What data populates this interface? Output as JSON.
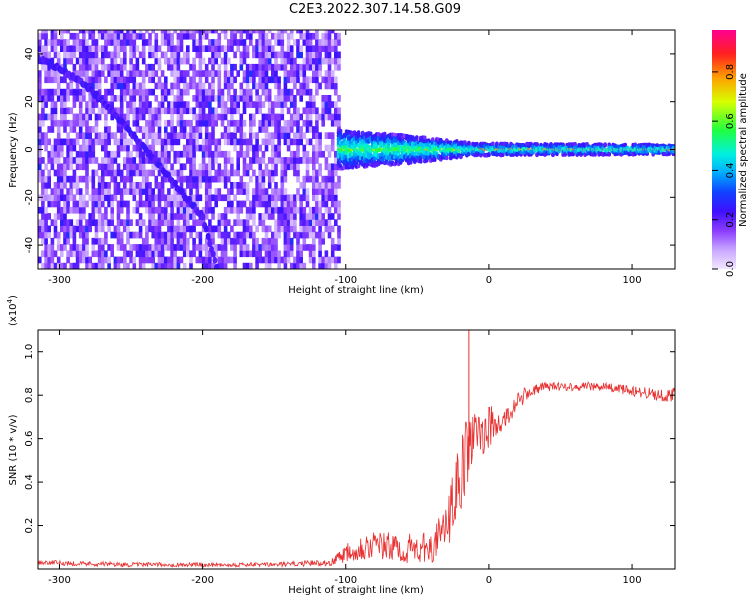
{
  "figure_title": "C2E3.2022.307.14.58.G09",
  "colors": {
    "spectrogram_palette": [
      "#ffffff",
      "#e8d4ff",
      "#c9a6ff",
      "#9a5cff",
      "#6a1bff",
      "#2020ff",
      "#00aaff",
      "#00f0e0",
      "#40ff40",
      "#e0ff00",
      "#ffa000",
      "#ff2020",
      "#ff0080"
    ],
    "snr_line": "#e83030"
  },
  "chart_data": [
    {
      "type": "heatmap",
      "title": "",
      "xlabel": "Height of straight line (km)",
      "ylabel": "Frequency (Hz)",
      "xlim": [
        -315,
        130
      ],
      "ylim": [
        -50,
        50
      ],
      "x_ticks": [
        -300,
        -200,
        -100,
        0,
        100
      ],
      "x_tick_labels": [
        "-300",
        "-200",
        "-100",
        "0",
        "100"
      ],
      "y_ticks": [
        -40,
        -20,
        0,
        20,
        40
      ],
      "y_tick_labels": [
        "-40",
        "-20",
        "0",
        "20",
        "40"
      ],
      "colorbar": {
        "label": "Normalized spectral amplitude",
        "range": [
          0,
          0.97
        ],
        "ticks": [
          0.0,
          0.2,
          0.4,
          0.6,
          0.8
        ],
        "tick_labels": [
          "0.0",
          "0.2",
          "0.4",
          "0.6",
          "0.8"
        ],
        "colormap": "purple-blue-cyan-green-yellow-red-magenta"
      },
      "features": {
        "noise_region_x": [
          -315,
          -105
        ],
        "noise_amplitude": [
          0.05,
          0.25
        ],
        "diagonal_trace": {
          "x": [
            -315,
            -300,
            -280,
            -260,
            -240,
            -220,
            -200,
            -190
          ],
          "y": [
            38,
            34,
            26,
            14,
            0,
            -14,
            -28,
            -50
          ],
          "amplitude": 0.2
        },
        "carrier_band": {
          "x": [
            -105,
            130
          ],
          "y": 0,
          "amplitude": 0.85
        },
        "carrier_spread_hz": [
          [
            -105,
            8
          ],
          [
            -60,
            6
          ],
          [
            -30,
            4
          ],
          [
            -10,
            2.5
          ],
          [
            130,
            2
          ]
        ]
      }
    },
    {
      "type": "line",
      "title": "",
      "xlabel": "Height of straight line (km)",
      "ylabel": "SNR (10 * v/v)",
      "y_multiplier_label": "(x10",
      "y_multiplier_exponent": "4",
      "y_multiplier_close": ")",
      "xlim": [
        -315,
        130
      ],
      "ylim": [
        0,
        1.1
      ],
      "x_ticks": [
        -300,
        -200,
        -100,
        0,
        100
      ],
      "x_tick_labels": [
        "-300",
        "-200",
        "-100",
        "0",
        "100"
      ],
      "y_ticks": [
        0.2,
        0.4,
        0.6,
        0.8,
        1.0
      ],
      "y_tick_labels": [
        "0.2",
        "0.4",
        "0.6",
        "0.8",
        "1.0"
      ],
      "series": [
        {
          "name": "",
          "x": [
            -315,
            -250,
            -200,
            -150,
            -110,
            -100,
            -90,
            -80,
            -60,
            -40,
            -30,
            -25,
            -20,
            -15,
            -10,
            -5,
            0,
            5,
            10,
            15,
            20,
            25,
            30,
            35,
            40,
            50,
            60,
            70,
            80,
            90,
            100,
            110,
            120,
            130
          ],
          "y": [
            0.03,
            0.02,
            0.02,
            0.02,
            0.03,
            0.08,
            0.1,
            0.11,
            0.09,
            0.1,
            0.18,
            0.3,
            0.42,
            0.55,
            0.6,
            0.63,
            0.66,
            0.65,
            0.68,
            0.72,
            0.77,
            0.8,
            0.82,
            0.83,
            0.84,
            0.84,
            0.84,
            0.84,
            0.84,
            0.83,
            0.82,
            0.81,
            0.8,
            0.8
          ],
          "noise": [
            0.012,
            0.01,
            0.01,
            0.01,
            0.015,
            0.05,
            0.06,
            0.07,
            0.07,
            0.07,
            0.12,
            0.15,
            0.18,
            0.16,
            0.13,
            0.12,
            0.1,
            0.08,
            0.06,
            0.05,
            0.04,
            0.035,
            0.03,
            0.025,
            0.022,
            0.02,
            0.02,
            0.02,
            0.02,
            0.02,
            0.025,
            0.03,
            0.03,
            0.035
          ],
          "peak": {
            "x": -14,
            "y": 1.1
          }
        }
      ]
    }
  ]
}
